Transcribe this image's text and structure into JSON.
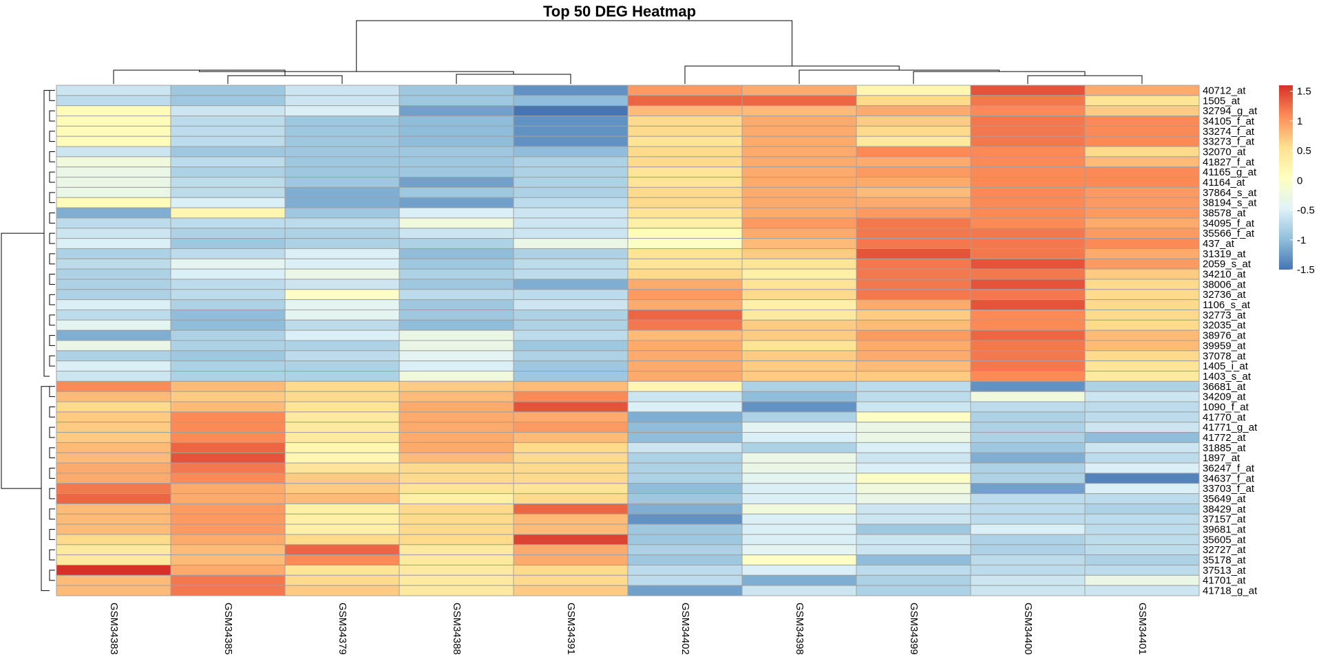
{
  "chart_data": {
    "type": "heatmap",
    "title": "Top 50 DEG Heatmap",
    "columns": [
      "GSM34383",
      "GSM34385",
      "GSM34379",
      "GSM34388",
      "GSM34391",
      "GSM34402",
      "GSM34398",
      "GSM34399",
      "GSM34400",
      "GSM34401"
    ],
    "rows": [
      "40712_at",
      "1505_at",
      "32794_g_at",
      "34105_f_at",
      "33274_f_at",
      "33273_f_at",
      "32070_at",
      "41827_f_at",
      "41165_g_at",
      "41164_at",
      "37864_s_at",
      "38194_s_at",
      "38578_at",
      "34095_f_at",
      "35566_f_at",
      "437_at",
      "31319_at",
      "2059_s_at",
      "34210_at",
      "38006_at",
      "32736_at",
      "1106_s_at",
      "32773_at",
      "32035_at",
      "38976_at",
      "39959_at",
      "37078_at",
      "1405_i_at",
      "1403_s_at",
      "36681_at",
      "34209_at",
      "1090_f_at",
      "41770_at",
      "41771_g_at",
      "41772_at",
      "31885_at",
      "1897_at",
      "36247_f_at",
      "34637_f_at",
      "33703_f_at",
      "35649_at",
      "38429_at",
      "37157_at",
      "39681_at",
      "35605_at",
      "32727_at",
      "35178_at",
      "37513_at",
      "41701_at",
      "41718_g_at"
    ],
    "values": [
      [
        -0.6,
        -0.9,
        -0.6,
        -0.9,
        -1.3,
        1.0,
        0.9,
        0.2,
        1.4,
        0.9
      ],
      [
        -0.7,
        -0.9,
        -0.6,
        -0.9,
        -1.0,
        1.3,
        1.3,
        0.6,
        1.2,
        0.5
      ],
      [
        0.1,
        -0.6,
        -0.5,
        -1.2,
        -1.5,
        0.8,
        0.8,
        0.9,
        1.1,
        0.7
      ],
      [
        0.1,
        -0.7,
        -0.9,
        -1.0,
        -1.3,
        0.6,
        0.9,
        0.7,
        1.2,
        1.1
      ],
      [
        0.1,
        -0.7,
        -0.9,
        -1.0,
        -1.3,
        0.6,
        0.9,
        0.6,
        1.2,
        1.1
      ],
      [
        0.1,
        -0.7,
        -0.9,
        -1.0,
        -1.3,
        0.5,
        0.9,
        0.4,
        1.2,
        1.1
      ],
      [
        -0.6,
        -0.9,
        -0.9,
        -0.9,
        -1.0,
        0.6,
        0.9,
        1.1,
        1.1,
        0.6
      ],
      [
        -0.2,
        -0.7,
        -0.9,
        -0.9,
        -0.8,
        0.6,
        0.9,
        0.9,
        1.1,
        0.8
      ],
      [
        -0.3,
        -0.8,
        -0.9,
        -0.9,
        -0.8,
        0.5,
        0.9,
        1.0,
        1.1,
        1.1
      ],
      [
        -0.3,
        -0.7,
        -0.9,
        -1.2,
        -0.8,
        0.5,
        0.9,
        0.9,
        1.1,
        1.1
      ],
      [
        -0.3,
        -0.7,
        -1.1,
        -0.9,
        -0.8,
        0.6,
        0.9,
        0.8,
        1.1,
        1.0
      ],
      [
        0.1,
        -0.5,
        -1.1,
        -1.2,
        -0.7,
        0.6,
        0.9,
        0.9,
        1.1,
        1.0
      ],
      [
        -1.1,
        0.2,
        -0.9,
        -0.5,
        -0.6,
        0.5,
        0.9,
        1.0,
        1.1,
        1.0
      ],
      [
        -0.7,
        -0.7,
        -0.7,
        -0.2,
        -0.6,
        0.3,
        1.0,
        1.2,
        1.1,
        0.9
      ],
      [
        -0.6,
        -0.8,
        -0.8,
        -0.6,
        -0.6,
        0.1,
        0.9,
        1.2,
        1.2,
        1.0
      ],
      [
        -0.5,
        -0.9,
        -0.8,
        -0.8,
        -0.3,
        0.0,
        0.8,
        1.2,
        1.2,
        1.1
      ],
      [
        -0.8,
        -0.7,
        -0.5,
        -1.0,
        -0.8,
        0.5,
        0.7,
        1.4,
        1.2,
        0.9
      ],
      [
        -0.7,
        -0.4,
        -0.5,
        -0.9,
        -0.7,
        0.5,
        0.5,
        1.2,
        1.4,
        1.0
      ],
      [
        -0.8,
        -0.5,
        -0.3,
        -0.8,
        -0.7,
        0.6,
        0.3,
        1.2,
        1.2,
        0.7
      ],
      [
        -0.8,
        -0.7,
        -0.6,
        -0.9,
        -1.1,
        0.9,
        0.5,
        1.2,
        1.4,
        0.6
      ],
      [
        -0.8,
        -0.7,
        0.0,
        -0.7,
        -0.7,
        1.0,
        0.6,
        1.2,
        1.2,
        0.6
      ],
      [
        -0.5,
        -0.8,
        -0.4,
        -0.9,
        -0.6,
        0.9,
        0.3,
        0.9,
        1.4,
        0.6
      ],
      [
        -0.7,
        -1.0,
        -0.4,
        -0.9,
        -0.8,
        1.3,
        0.4,
        0.7,
        1.1,
        0.6
      ],
      [
        -0.4,
        -1.0,
        -0.7,
        -1.0,
        -0.8,
        1.2,
        0.7,
        0.8,
        1.1,
        0.6
      ],
      [
        -1.1,
        -0.8,
        -0.5,
        -0.3,
        -0.7,
        0.8,
        0.7,
        1.0,
        1.3,
        0.8
      ],
      [
        -0.3,
        -0.8,
        -0.8,
        -0.3,
        -0.9,
        0.9,
        0.5,
        0.9,
        1.2,
        0.8
      ],
      [
        -0.8,
        -0.9,
        -0.7,
        -0.4,
        -0.8,
        0.9,
        0.7,
        0.9,
        1.2,
        0.6
      ],
      [
        -0.5,
        -0.8,
        -0.8,
        -0.5,
        -0.9,
        0.9,
        0.7,
        0.8,
        1.2,
        0.5
      ],
      [
        -0.6,
        -0.8,
        -0.8,
        -0.2,
        -0.9,
        0.9,
        0.7,
        0.7,
        1.1,
        0.4
      ],
      [
        1.1,
        0.8,
        0.6,
        0.7,
        0.8,
        0.2,
        -0.8,
        -0.7,
        -1.3,
        -0.8
      ],
      [
        0.8,
        0.7,
        0.6,
        0.8,
        1.1,
        -0.6,
        -1.0,
        -0.7,
        -0.2,
        -0.6
      ],
      [
        0.6,
        0.8,
        0.5,
        0.9,
        1.4,
        -0.5,
        -1.3,
        -0.6,
        -0.7,
        -0.7
      ],
      [
        0.7,
        1.1,
        0.4,
        0.9,
        0.9,
        -1.1,
        -0.8,
        0.0,
        -0.8,
        -0.7
      ],
      [
        0.7,
        1.1,
        0.4,
        0.9,
        1.0,
        -1.0,
        -0.4,
        -0.3,
        -0.8,
        -0.6
      ],
      [
        0.7,
        1.1,
        0.4,
        0.9,
        0.8,
        -1.0,
        -0.5,
        -0.3,
        -0.8,
        -1.0
      ],
      [
        0.8,
        1.3,
        0.2,
        0.9,
        0.6,
        -0.6,
        -0.8,
        -0.5,
        -0.9,
        -0.6
      ],
      [
        0.8,
        1.4,
        0.2,
        0.8,
        0.6,
        -0.8,
        -0.3,
        -0.6,
        -1.1,
        -0.7
      ],
      [
        0.9,
        1.2,
        0.5,
        0.6,
        0.6,
        -0.8,
        -0.3,
        -0.5,
        -0.8,
        -0.5
      ],
      [
        0.9,
        1.1,
        0.7,
        0.6,
        0.6,
        -0.8,
        -0.4,
        0.0,
        -0.8,
        -1.4
      ],
      [
        1.2,
        0.9,
        0.7,
        0.5,
        0.5,
        -1.0,
        -0.5,
        -0.2,
        -1.2,
        -0.5
      ],
      [
        1.3,
        0.9,
        0.8,
        0.3,
        0.6,
        -0.9,
        -0.5,
        -0.3,
        -0.7,
        -0.7
      ],
      [
        0.8,
        1.0,
        0.3,
        0.6,
        1.3,
        -1.1,
        -0.2,
        -0.6,
        -0.7,
        -0.8
      ],
      [
        0.8,
        1.0,
        0.3,
        0.6,
        0.8,
        -1.3,
        -0.5,
        -0.6,
        -0.7,
        -0.7
      ],
      [
        0.8,
        1.0,
        0.3,
        0.6,
        0.8,
        -0.9,
        -0.5,
        -0.9,
        -0.5,
        -0.7
      ],
      [
        0.6,
        0.9,
        0.6,
        0.6,
        1.5,
        -0.9,
        -0.5,
        -0.6,
        -0.8,
        -0.7
      ],
      [
        0.4,
        0.8,
        1.3,
        0.4,
        0.9,
        -0.8,
        -0.4,
        -0.6,
        -0.8,
        -0.7
      ],
      [
        0.4,
        0.8,
        1.1,
        0.4,
        0.9,
        -0.9,
        0.0,
        -1.0,
        -0.7,
        -0.8
      ],
      [
        1.6,
        0.9,
        0.5,
        0.4,
        0.6,
        -0.7,
        -0.5,
        -0.7,
        -0.7,
        -0.7
      ],
      [
        0.8,
        1.2,
        0.6,
        0.4,
        0.6,
        -0.7,
        -1.1,
        -0.8,
        -0.6,
        -0.3
      ],
      [
        0.8,
        1.2,
        0.7,
        0.4,
        0.7,
        -1.2,
        -0.6,
        -0.8,
        -0.6,
        -0.6
      ]
    ],
    "scale": {
      "min": -1.5,
      "max": 1.6,
      "ticks": [
        1.5,
        1,
        0.5,
        0,
        -0.5,
        -1,
        -1.5
      ],
      "colors": [
        "#4575B4",
        "#91BFDB",
        "#E0F3F8",
        "#FFFFBF",
        "#FEE090",
        "#FC8D59",
        "#D73027"
      ]
    },
    "cell_border_color": "#A0A0A0",
    "col_dendrogram": "((((GSM34383,(GSM34385,GSM34379)),(GSM34388,GSM34391)),((GSM34402,(GSM34398,(GSM34399,(GSM34400,GSM34401)))))))",
    "row_clusters": "two main clusters: rows 1-29 (up in GSM34402-GSM34401) and rows 30-50 (up in GSM34383-GSM34391)"
  }
}
